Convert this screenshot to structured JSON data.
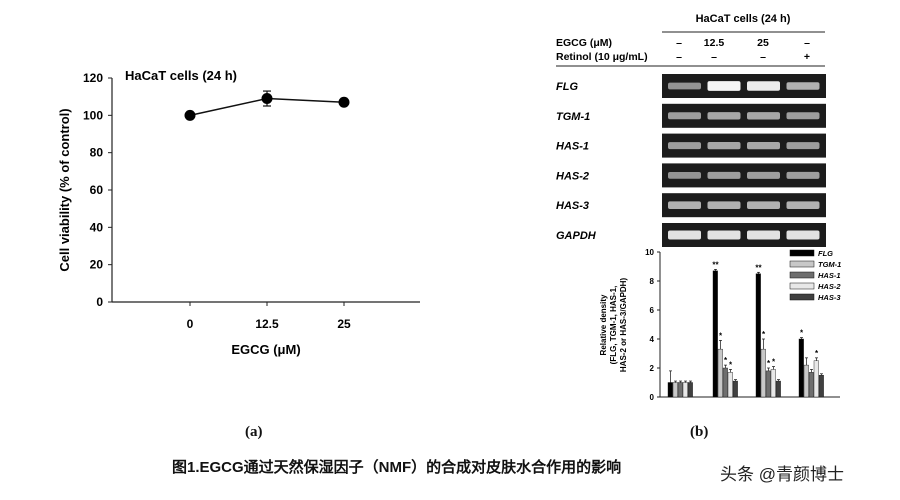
{
  "figure": {
    "caption": "图1.EGCG通过天然保湿因子（NMF）的合成对皮肤水合作用的影响",
    "watermark": "头条 @青颜博士",
    "panel_a_label": "(a)",
    "panel_b_label": "(b)"
  },
  "panel_b": {
    "header": "HaCaT cells (24 h)",
    "rows": [
      {
        "label": "EGCG (μM)",
        "values": [
          "–",
          "12.5",
          "25",
          "–"
        ]
      },
      {
        "label": "Retinol (10 μg/mL)",
        "values": [
          "–",
          "–",
          "–",
          "+"
        ]
      }
    ],
    "gels": [
      {
        "label": "FLG",
        "intensities": [
          0.45,
          0.95,
          0.9,
          0.6
        ]
      },
      {
        "label": "TGM-1",
        "intensities": [
          0.5,
          0.55,
          0.55,
          0.5
        ]
      },
      {
        "label": "HAS-1",
        "intensities": [
          0.5,
          0.55,
          0.55,
          0.5
        ]
      },
      {
        "label": "HAS-2",
        "intensities": [
          0.45,
          0.5,
          0.5,
          0.5
        ]
      },
      {
        "label": "HAS-3",
        "intensities": [
          0.6,
          0.6,
          0.6,
          0.6
        ]
      },
      {
        "label": "GAPDH",
        "intensities": [
          0.85,
          0.85,
          0.85,
          0.85
        ]
      }
    ]
  },
  "chart_data": [
    {
      "type": "line",
      "title": "HaCaT cells (24 h)",
      "xlabel": "EGCG (μM)",
      "ylabel": "Cell viability (% of control)",
      "categories": [
        "0",
        "12.5",
        "25"
      ],
      "values": [
        100,
        109,
        107
      ],
      "error": [
        0,
        4,
        0
      ],
      "ylim": [
        0,
        120
      ],
      "yticks": [
        "0",
        "20",
        "40",
        "60",
        "80",
        "100",
        "120"
      ],
      "grid": false
    },
    {
      "type": "bar",
      "ylabel": "Relative density\n(FLG, TGM-1, HAS-1,\nHAS-2 or HAS-3/GAPDH)",
      "ylim": [
        0,
        10
      ],
      "grid": false,
      "legend_position": "top-right",
      "groups": 4,
      "series": [
        {
          "name": "FLG",
          "color": "#000000",
          "values": [
            1.0,
            8.7,
            8.5,
            4.0
          ],
          "errors": [
            0.8,
            0.1,
            0.1,
            0.1
          ],
          "labels": [
            "",
            "**",
            "**",
            "*"
          ]
        },
        {
          "name": "TGM-1",
          "color": "#c8c8c8",
          "values": [
            1.0,
            3.3,
            3.3,
            2.2
          ],
          "errors": [
            0.1,
            0.6,
            0.7,
            0.5
          ],
          "labels": [
            "",
            "*",
            "*",
            ""
          ]
        },
        {
          "name": "HAS-1",
          "color": "#6e6e6e",
          "values": [
            1.0,
            2.0,
            1.8,
            1.7
          ],
          "errors": [
            0.1,
            0.2,
            0.2,
            0.2
          ],
          "labels": [
            "",
            "*",
            "*",
            ""
          ]
        },
        {
          "name": "HAS-2",
          "color": "#e8e8e8",
          "values": [
            1.0,
            1.7,
            1.9,
            2.5
          ],
          "errors": [
            0.1,
            0.2,
            0.2,
            0.2
          ],
          "labels": [
            "",
            "*",
            "*",
            "*"
          ]
        },
        {
          "name": "HAS-3",
          "color": "#404040",
          "values": [
            1.0,
            1.1,
            1.1,
            1.5
          ],
          "errors": [
            0.1,
            0.1,
            0.1,
            0.1
          ],
          "labels": [
            "",
            "",
            "",
            ""
          ]
        }
      ]
    }
  ]
}
